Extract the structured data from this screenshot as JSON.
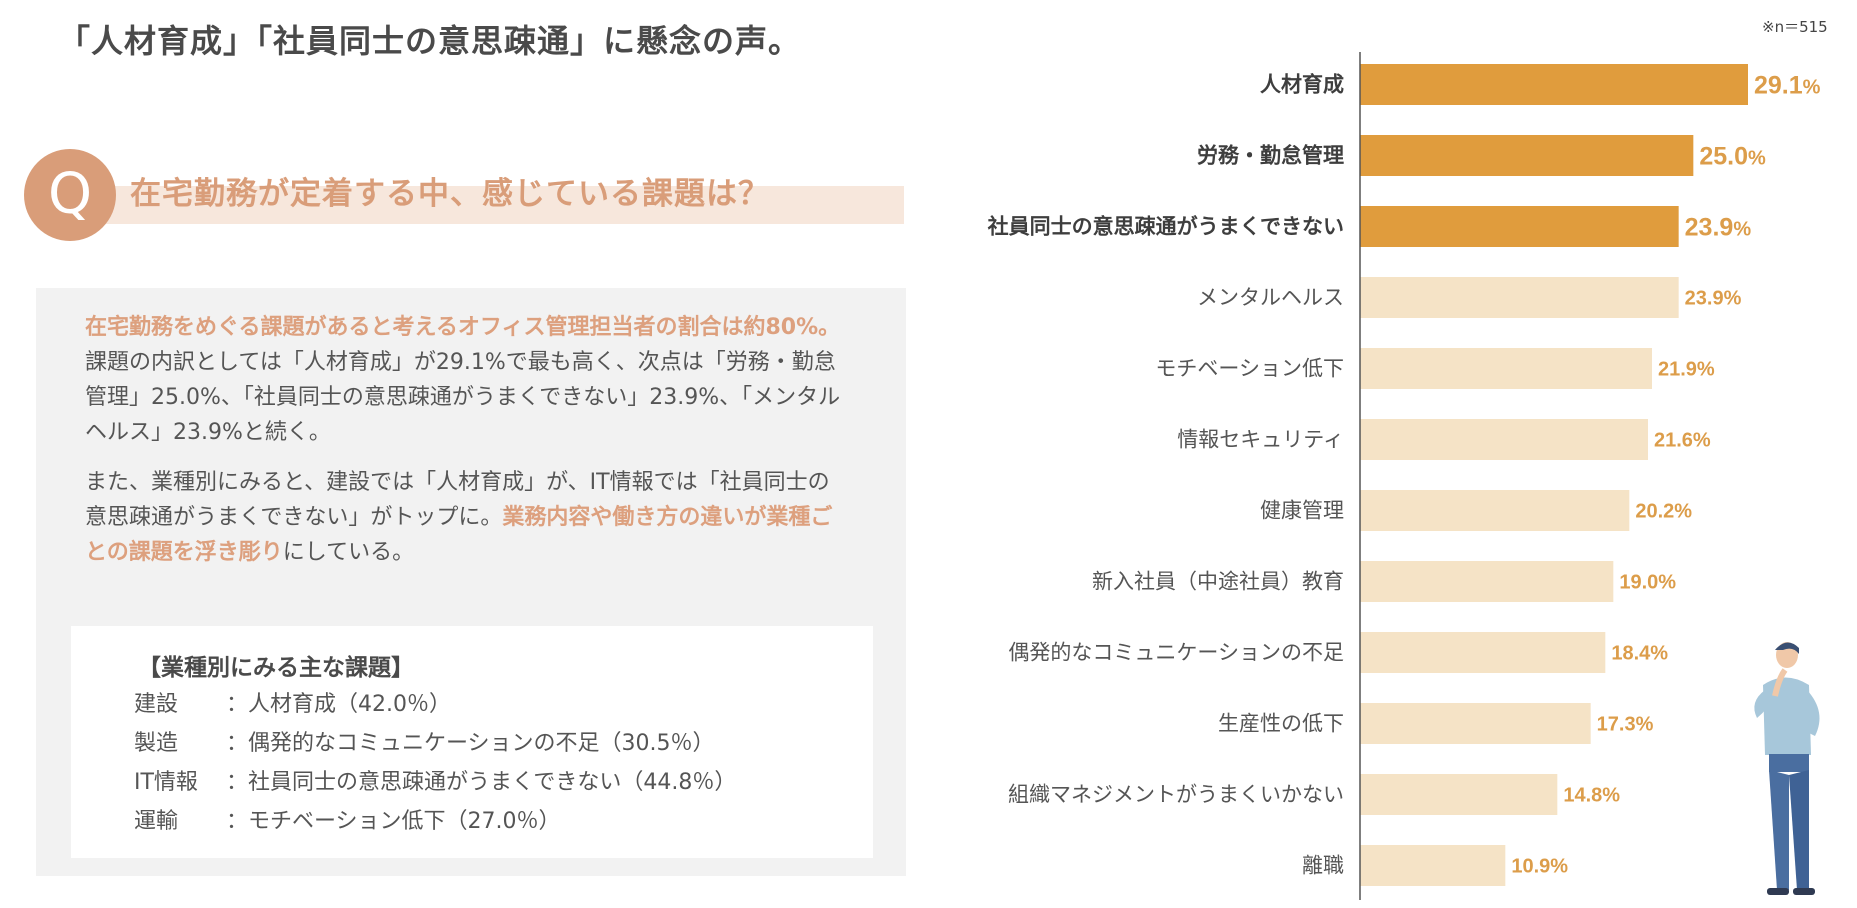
{
  "headline": "「人材育成」「社員同士の意思疎通」に懸念の声。",
  "sample_note": "※n＝515",
  "question": {
    "mark": "Q",
    "text": "在宅勤務が定着する中、感じている課題は？"
  },
  "summary": {
    "p1_highlight": "在宅勤務をめぐる課題があると考えるオフィス管理担当者の割合は約80%。",
    "p1_rest": "課題の内訳としては「人材育成」が29.1%で最も高く、次点は「労務・勤怠管理」25.0%、「社員同士の意思疎通がうまくできない」23.9%、「メンタルヘルス」23.9%と続く。",
    "p2_start": "また、業種別にみると、建設では「人材育成」が、IT情報では「社員同士の意思疎通がうまくできない」がトップに。",
    "p2_highlight": "業務内容や働き方の違いが業種ごとの課題を浮き彫り",
    "p2_end": "にしている。"
  },
  "industry": {
    "title": "【業種別にみる主な課題】",
    "rows": [
      {
        "name": "建設",
        "value": "：人材育成（42.0％）"
      },
      {
        "name": "製造",
        "value": "：偶発的なコミュニケーションの不足（30.5％）"
      },
      {
        "name": "IT情報",
        "value": "：社員同士の意思疎通がうまくできない（44.8％）"
      },
      {
        "name": "運輸",
        "value": "：モチベーション低下（27.0％）"
      }
    ]
  },
  "chart_data": {
    "type": "bar",
    "orientation": "horizontal",
    "title": "",
    "xlabel": "",
    "ylabel": "",
    "xlim": [
      0,
      30
    ],
    "grid": false,
    "categories": [
      "人材育成",
      "労務・勤怠管理",
      "社員同士の意思疎通がうまくできない",
      "メンタルヘルス",
      "モチベーション低下",
      "情報セキュリティ",
      "健康管理",
      "新入社員（中途社員）教育",
      "偶発的なコミュニケーションの不足",
      "生産性の低下",
      "組織マネジメントがうまくいかない",
      "離職"
    ],
    "values": [
      29.1,
      25.0,
      23.9,
      23.9,
      21.9,
      21.6,
      20.2,
      19.0,
      18.4,
      17.3,
      14.8,
      10.9
    ],
    "value_labels": [
      "29.1",
      "25.0",
      "23.9",
      "23.9%",
      "21.9%",
      "21.6%",
      "20.2%",
      "19.0%",
      "18.4%",
      "17.3%",
      "14.8%",
      "10.9%"
    ],
    "unit": "%",
    "highlight_count": 3,
    "colors": {
      "highlight": "#e09c3d",
      "normal": "#f5e3c6",
      "axis": "#555555",
      "value_text": "#dc9d4a"
    }
  }
}
